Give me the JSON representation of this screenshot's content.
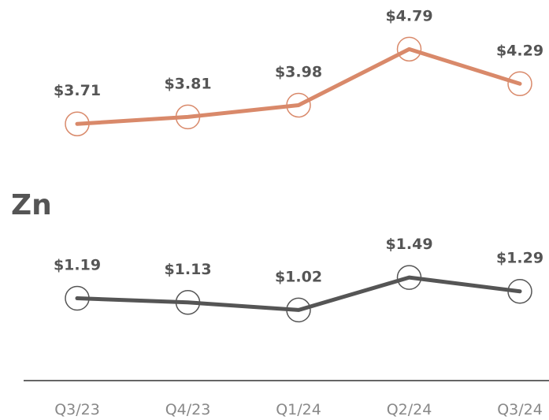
{
  "chart_data": {
    "type": "line",
    "categories": [
      "Q3/23",
      "Q4/23",
      "Q1/24",
      "Q2/24",
      "Q3/24"
    ],
    "ylim": [
      0,
      5.5
    ],
    "series": [
      {
        "color": "#d9896a",
        "values": [
          3.71,
          3.81,
          3.98,
          4.79,
          4.29
        ],
        "value_labels": [
          "$3.71",
          "$3.81",
          "$3.98",
          "$4.79",
          "$4.29"
        ]
      },
      {
        "name": "Zn",
        "color": "#555555",
        "values": [
          1.19,
          1.13,
          1.02,
          1.49,
          1.29
        ],
        "value_labels": [
          "$1.19",
          "$1.13",
          "$1.02",
          "$1.49",
          "$1.29"
        ]
      }
    ]
  }
}
